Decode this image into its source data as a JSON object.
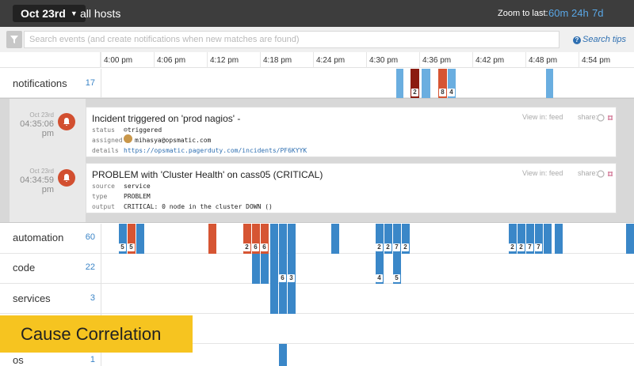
{
  "header": {
    "date_label": "Oct 23rd",
    "hosts_label": "all hosts",
    "zoom_label": "Zoom to last:",
    "zoom_options": [
      "60m",
      "24h",
      "7d"
    ]
  },
  "search": {
    "placeholder": "Search events (and create notifications when new matches are found)",
    "value": "",
    "tips_label": "Search tips"
  },
  "axis": {
    "ticks": [
      "4:00 pm",
      "4:06 pm",
      "4:12 pm",
      "4:18 pm",
      "4:24 pm",
      "4:30 pm",
      "4:36 pm",
      "4:42 pm",
      "4:48 pm",
      "4:54 pm"
    ]
  },
  "rows": {
    "notifications": {
      "label": "notifications",
      "count": "17",
      "badges": [
        "2",
        "8",
        "4"
      ]
    },
    "automation": {
      "label": "automation",
      "count": "60",
      "badges": [
        "5",
        "5",
        "2",
        "6",
        "6",
        "2",
        "2",
        "7",
        "2",
        "2",
        "2",
        "7",
        "7"
      ]
    },
    "code": {
      "label": "code",
      "count": "22",
      "badges": [
        "6",
        "3",
        "4",
        "5"
      ]
    },
    "services": {
      "label": "services",
      "count": "3"
    },
    "os": {
      "label": "os",
      "count": "1"
    }
  },
  "events": [
    {
      "date": "Oct 23rd",
      "time_a": "04:35:06",
      "time_b": "pm",
      "title": "Incident triggered on 'prod nagios' -",
      "fields": [
        {
          "key": "status",
          "value": "☹triggered"
        },
        {
          "key": "assigned",
          "value": "mihasya@opsmatic.com"
        },
        {
          "key": "details",
          "value": "https://opsmatic.pagerduty.com/incidents/PF6KYYK"
        }
      ],
      "view_in": "View in: feed",
      "share": "share:"
    },
    {
      "date": "Oct 23rd",
      "time_a": "04:34:59",
      "time_b": "pm",
      "title": "PROBLEM with 'Cluster Health' on cass05 (CRITICAL)",
      "fields": [
        {
          "key": "source",
          "value": "service"
        },
        {
          "key": "type",
          "value": "PROBLEM"
        },
        {
          "key": "output",
          "value": "CRITICAL: 0 node in the cluster DOWN ()"
        }
      ],
      "view_in": "View in: feed",
      "share": "share:"
    }
  ],
  "caption": "Cause Correlation",
  "colors": {
    "topbar": "#3d3d3d",
    "bar_blue": "#3a87c8",
    "bar_light_blue": "#6aaee0",
    "bar_red": "#d65533",
    "bar_dark_red": "#8b1b10",
    "bell": "#d24f30",
    "caption_bg": "#f6c420",
    "link": "#2e6fb1"
  },
  "icons": {
    "filter": "filter-icon",
    "date_dropdown": "chevron-down-icon",
    "help": "question-circle-icon",
    "bell": "bell-icon",
    "comment": "comment-icon",
    "slack": "slack-icon",
    "avatar": "avatar"
  }
}
